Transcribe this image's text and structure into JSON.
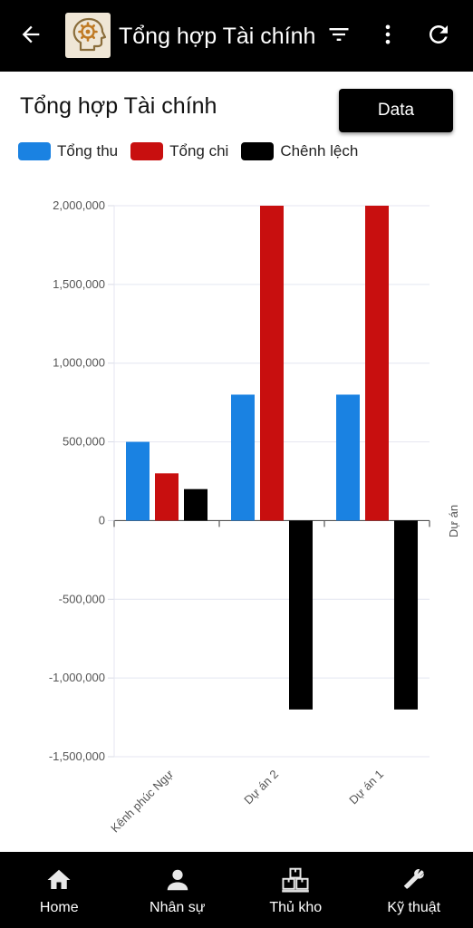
{
  "header": {
    "title": "Tổng hợp Tài chính",
    "icons": [
      "back-arrow-icon",
      "app-logo",
      "filter-icon",
      "more-vert-icon",
      "refresh-icon"
    ]
  },
  "page": {
    "heading": "Tổng hợp Tài chính",
    "data_button": "Data"
  },
  "legend": [
    {
      "label": "Tổng thu",
      "color": "#1a82e2"
    },
    {
      "label": "Tổng chi",
      "color": "#c80f0f"
    },
    {
      "label": "Chênh lệch",
      "color": "#000000"
    }
  ],
  "chart_data": {
    "type": "bar",
    "categories": [
      "Kênh phúc Ngự",
      "Dự án 2",
      "Dự án 1"
    ],
    "series": [
      {
        "name": "Tổng thu",
        "color": "#1a82e2",
        "values": [
          500000,
          800000,
          800000
        ]
      },
      {
        "name": "Tổng chi",
        "color": "#c80f0f",
        "values": [
          300000,
          2000000,
          2000000
        ]
      },
      {
        "name": "Chênh lệch",
        "color": "#000000",
        "values": [
          200000,
          -1200000,
          -1200000
        ]
      }
    ],
    "yticks": [
      "2,000,000",
      "1,500,000",
      "1,000,000",
      "500,000",
      "0",
      "-500,000",
      "-1,000,000",
      "-1,500,000"
    ],
    "ytick_values": [
      2000000,
      1500000,
      1000000,
      500000,
      0,
      -500000,
      -1000000,
      -1500000
    ],
    "ylim": [
      -1500000,
      2000000
    ],
    "xlabel": "Dự án",
    "grid": true
  },
  "bottom_nav": [
    {
      "label": "Home",
      "icon": "home-icon"
    },
    {
      "label": "Nhân sự",
      "icon": "person-icon"
    },
    {
      "label": "Thủ kho",
      "icon": "warehouse-boxes-icon"
    },
    {
      "label": "Kỹ thuật",
      "icon": "tools-icon"
    }
  ]
}
